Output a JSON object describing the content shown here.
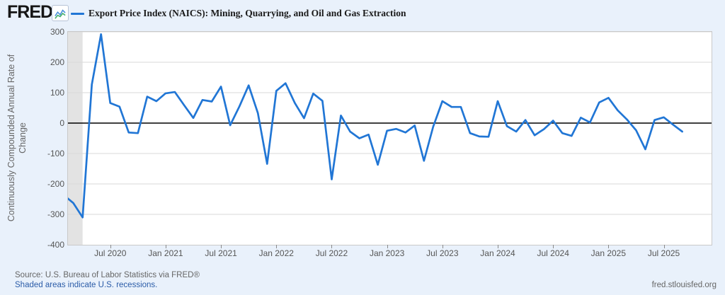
{
  "header": {
    "logo_text": "FRED",
    "logo_registered": "®",
    "legend_label": "Export Price Index (NAICS): Mining, Quarrying, and Oil and Gas Extraction"
  },
  "footer": {
    "source": "Source: U.S. Bureau of Labor Statistics via FRED®",
    "recession_note": "Shaded areas indicate U.S. recessions.",
    "site": "fred.stlouisfed.org"
  },
  "colors": {
    "page_bg": "#e9f1fb",
    "plot_bg": "#ffffff",
    "plot_border": "#c9c9c9",
    "grid": "#d9d9d9",
    "zero_line": "#000000",
    "series_line": "#2176d5",
    "recession_band": "#e3e3e3",
    "axis_text": "#555555",
    "footer_text": "#666666",
    "link": "#2b5ca8",
    "title_text": "#1a1a1a",
    "icon_line_blue": "#4a90d9",
    "icon_line_green": "#45b06e"
  },
  "chart_data": {
    "type": "line",
    "title": "Export Price Index (NAICS): Mining, Quarrying, and Oil and Gas Extraction",
    "ylabel": "Continuously Compounded Annual Rate of Change",
    "frequency": "monthly",
    "ylim": [
      -400,
      300
    ],
    "y_ticks": [
      300,
      200,
      100,
      0,
      -100,
      -200,
      -300,
      -400
    ],
    "x_tick_labels": [
      "Jul 2020",
      "Jan 2021",
      "Jul 2021",
      "Jan 2022",
      "Jul 2022",
      "Jan 2023",
      "Jul 2023",
      "Jan 2024",
      "Jul 2024",
      "Jan 2025",
      "Jul 2025"
    ],
    "grid": "horizontal",
    "legend_position": "top",
    "recession_bands": [
      {
        "start": "2020-02",
        "end": "2020-04"
      }
    ],
    "dates": [
      "2020-02",
      "2020-03",
      "2020-04",
      "2020-05",
      "2020-06",
      "2020-07",
      "2020-08",
      "2020-09",
      "2020-10",
      "2020-11",
      "2020-12",
      "2021-01",
      "2021-02",
      "2021-03",
      "2021-04",
      "2021-05",
      "2021-06",
      "2021-07",
      "2021-08",
      "2021-09",
      "2021-10",
      "2021-11",
      "2021-12",
      "2022-01",
      "2022-02",
      "2022-03",
      "2022-04",
      "2022-05",
      "2022-06",
      "2022-07",
      "2022-08",
      "2022-09",
      "2022-10",
      "2022-11",
      "2022-12",
      "2023-01",
      "2023-02",
      "2023-03",
      "2023-04",
      "2023-05",
      "2023-06",
      "2023-07",
      "2023-08",
      "2023-09",
      "2023-10",
      "2023-11",
      "2023-12",
      "2024-01",
      "2024-02",
      "2024-03",
      "2024-04",
      "2024-05",
      "2024-06",
      "2024-07",
      "2024-08",
      "2024-09",
      "2024-10",
      "2024-11",
      "2024-12",
      "2025-01",
      "2025-02",
      "2025-03",
      "2025-04",
      "2025-05",
      "2025-06",
      "2025-07",
      "2025-08",
      "2025-09"
    ],
    "values": [
      -238,
      -263,
      -310,
      127,
      292,
      66,
      54,
      -31,
      -33,
      87,
      72,
      98,
      102,
      59,
      17,
      76,
      71,
      120,
      -7,
      55,
      124,
      33,
      -134,
      106,
      131,
      66,
      16,
      97,
      73,
      -185,
      25,
      -28,
      -50,
      -38,
      -137,
      -25,
      -19,
      -31,
      -8,
      -124,
      -12,
      72,
      53,
      53,
      -33,
      -44,
      -45,
      72,
      -10,
      -28,
      10,
      -40,
      -20,
      8,
      -33,
      -42,
      18,
      2,
      68,
      83,
      42,
      12,
      -24,
      -86,
      10,
      19,
      -5,
      -28
    ]
  }
}
